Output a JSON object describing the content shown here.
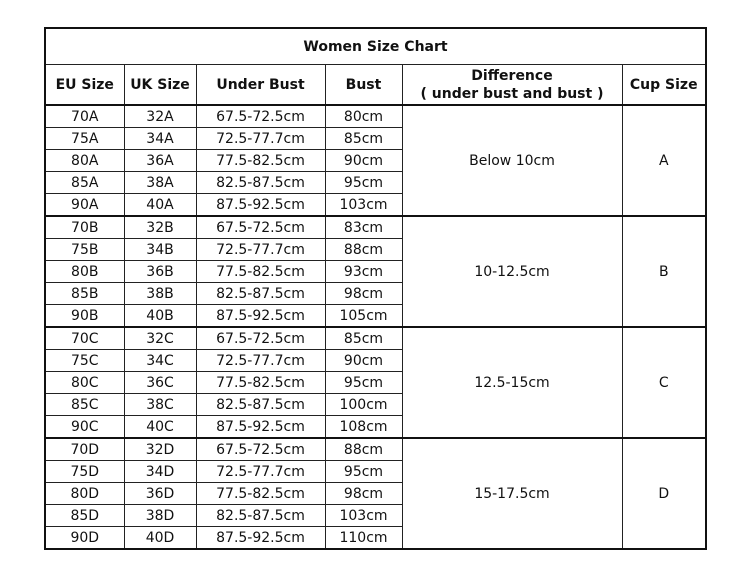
{
  "title": "Women Size Chart",
  "headers": [
    "EU Size",
    "UK Size",
    "Under Bust",
    "Bust",
    "Difference\n( under bust and bust )",
    "Cup Size"
  ],
  "groups": [
    {
      "difference": "Below 10cm",
      "cup": "A",
      "rows": [
        [
          "70A",
          "32A",
          "67.5-72.5cm",
          "80cm"
        ],
        [
          "75A",
          "34A",
          "72.5-77.7cm",
          "85cm"
        ],
        [
          "80A",
          "36A",
          "77.5-82.5cm",
          "90cm"
        ],
        [
          "85A",
          "38A",
          "82.5-87.5cm",
          "95cm"
        ],
        [
          "90A",
          "40A",
          "87.5-92.5cm",
          "103cm"
        ]
      ]
    },
    {
      "difference": "10-12.5cm",
      "cup": "B",
      "rows": [
        [
          "70B",
          "32B",
          "67.5-72.5cm",
          "83cm"
        ],
        [
          "75B",
          "34B",
          "72.5-77.7cm",
          "88cm"
        ],
        [
          "80B",
          "36B",
          "77.5-82.5cm",
          "93cm"
        ],
        [
          "85B",
          "38B",
          "82.5-87.5cm",
          "98cm"
        ],
        [
          "90B",
          "40B",
          "87.5-92.5cm",
          "105cm"
        ]
      ]
    },
    {
      "difference": "12.5-15cm",
      "cup": "C",
      "rows": [
        [
          "70C",
          "32C",
          "67.5-72.5cm",
          "85cm"
        ],
        [
          "75C",
          "34C",
          "72.5-77.7cm",
          "90cm"
        ],
        [
          "80C",
          "36C",
          "77.5-82.5cm",
          "95cm"
        ],
        [
          "85C",
          "38C",
          "82.5-87.5cm",
          "100cm"
        ],
        [
          "90C",
          "40C",
          "87.5-92.5cm",
          "108cm"
        ]
      ]
    },
    {
      "difference": "15-17.5cm",
      "cup": "D",
      "rows": [
        [
          "70D",
          "32D",
          "67.5-72.5cm",
          "88cm"
        ],
        [
          "75D",
          "34D",
          "72.5-77.7cm",
          "95cm"
        ],
        [
          "80D",
          "36D",
          "77.5-82.5cm",
          "98cm"
        ],
        [
          "85D",
          "38D",
          "82.5-87.5cm",
          "103cm"
        ],
        [
          "90D",
          "40D",
          "87.5-92.5cm",
          "110cm"
        ]
      ]
    }
  ]
}
